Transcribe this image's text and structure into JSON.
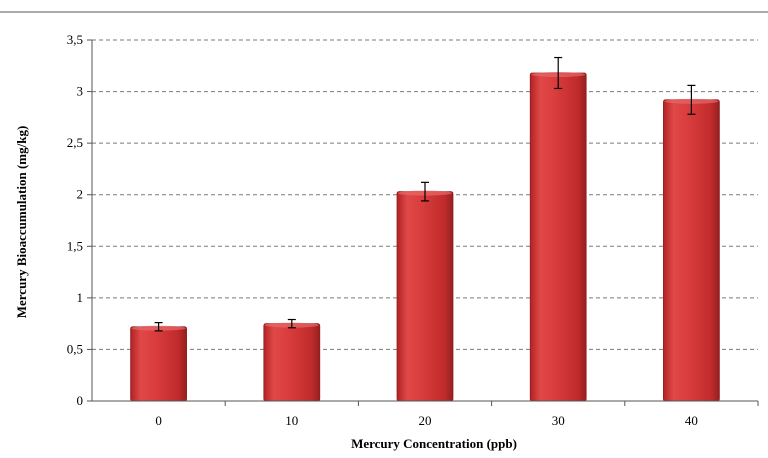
{
  "chart_data": {
    "type": "bar",
    "categories": [
      "0",
      "10",
      "20",
      "30",
      "40"
    ],
    "values": [
      0.72,
      0.75,
      2.03,
      3.18,
      2.92
    ],
    "errors": [
      0.04,
      0.04,
      0.09,
      0.15,
      0.14
    ],
    "xlabel": "Mercury Concentration (ppb)",
    "ylabel": "Mercury Bioaccumulation (mg/kg)",
    "ylim": [
      0,
      3.5
    ],
    "yticks": [
      "0",
      "0,5",
      "1",
      "1,5",
      "2",
      "2,5",
      "3",
      "3,5"
    ],
    "grid": true,
    "bar_color": "#d63a3a",
    "legend": "none"
  }
}
